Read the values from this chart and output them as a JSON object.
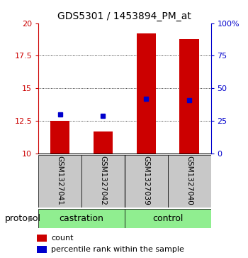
{
  "title": "GDS5301 / 1453894_PM_at",
  "samples": [
    "GSM1327041",
    "GSM1327042",
    "GSM1327039",
    "GSM1327040"
  ],
  "bar_bottom": 10,
  "bar_tops": [
    12.5,
    11.7,
    19.2,
    18.8
  ],
  "percentile_ranks": [
    13.0,
    12.9,
    14.2,
    14.1
  ],
  "ylim_left": [
    10,
    20
  ],
  "ylim_right": [
    0,
    100
  ],
  "yticks_left": [
    10,
    12.5,
    15,
    17.5,
    20
  ],
  "yticks_right": [
    0,
    25,
    50,
    75,
    100
  ],
  "ytick_labels_left": [
    "10",
    "12.5",
    "15",
    "17.5",
    "20"
  ],
  "ytick_labels_right": [
    "0",
    "25",
    "50",
    "75",
    "100%"
  ],
  "bar_color": "#CC0000",
  "dot_color": "#0000CC",
  "bar_width": 0.45,
  "background_color": "#ffffff",
  "legend_count_label": "count",
  "legend_pct_label": "percentile rank within the sample",
  "protocol_label": "protocol",
  "castration_color": "#90EE90",
  "sample_bg_color": "#C8C8C8"
}
